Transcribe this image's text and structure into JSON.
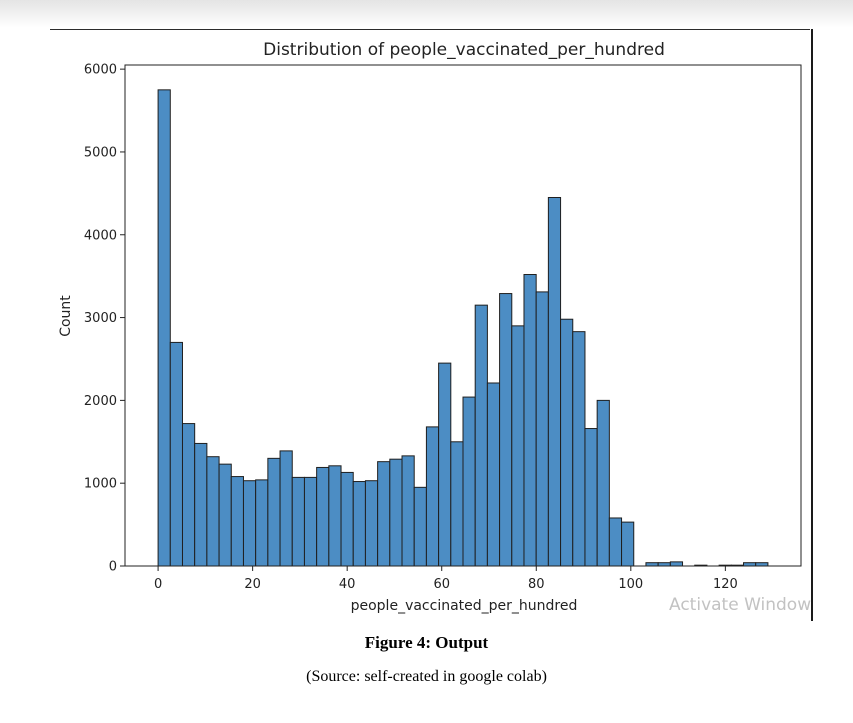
{
  "chart_data": {
    "type": "bar",
    "title": "Distribution of people_vaccinated_per_hundred",
    "xlabel": "people_vaccinated_per_hundred",
    "ylabel": "Count",
    "xlim": [
      -7,
      136
    ],
    "ylim": [
      0,
      6050
    ],
    "xticks": [
      0,
      20,
      40,
      60,
      80,
      100,
      120
    ],
    "yticks": [
      0,
      1000,
      2000,
      3000,
      4000,
      5000,
      6000
    ],
    "bin_width": 2.58,
    "bin_starts": [
      0,
      2.58,
      5.16,
      7.74,
      10.32,
      12.9,
      15.48,
      18.06,
      20.64,
      23.22,
      25.8,
      28.38,
      30.96,
      33.54,
      36.12,
      38.7,
      41.28,
      43.86,
      46.44,
      49.02,
      51.6,
      54.18,
      56.76,
      59.34,
      61.92,
      64.5,
      67.08,
      69.66,
      72.24,
      74.82,
      77.4,
      79.98,
      82.56,
      85.14,
      87.72,
      90.3,
      92.88,
      95.46,
      98.04,
      100.62,
      103.2,
      105.78,
      108.36,
      110.94,
      113.52,
      116.1,
      118.68,
      121.26,
      123.84,
      126.42
    ],
    "values": [
      5750,
      2700,
      1720,
      1480,
      1320,
      1230,
      1080,
      1030,
      1040,
      1300,
      1390,
      1070,
      1070,
      1190,
      1210,
      1130,
      1020,
      1030,
      1260,
      1290,
      1330,
      950,
      1680,
      2450,
      1500,
      2040,
      3150,
      2210,
      3290,
      2900,
      3520,
      3310,
      4450,
      2980,
      2830,
      1660,
      2000,
      580,
      530,
      0,
      40,
      40,
      50,
      0,
      10,
      0,
      10,
      10,
      40,
      40
    ],
    "tail_values": [
      40,
      30,
      40
    ],
    "bar_color": "#4C8DC4",
    "edge_color": "#1f1f1f",
    "grid": false,
    "legend": "none"
  },
  "watermark": "Activate Windows",
  "caption": {
    "figure": "Figure 4: Output",
    "source": "(Source: self-created in google colab)"
  }
}
